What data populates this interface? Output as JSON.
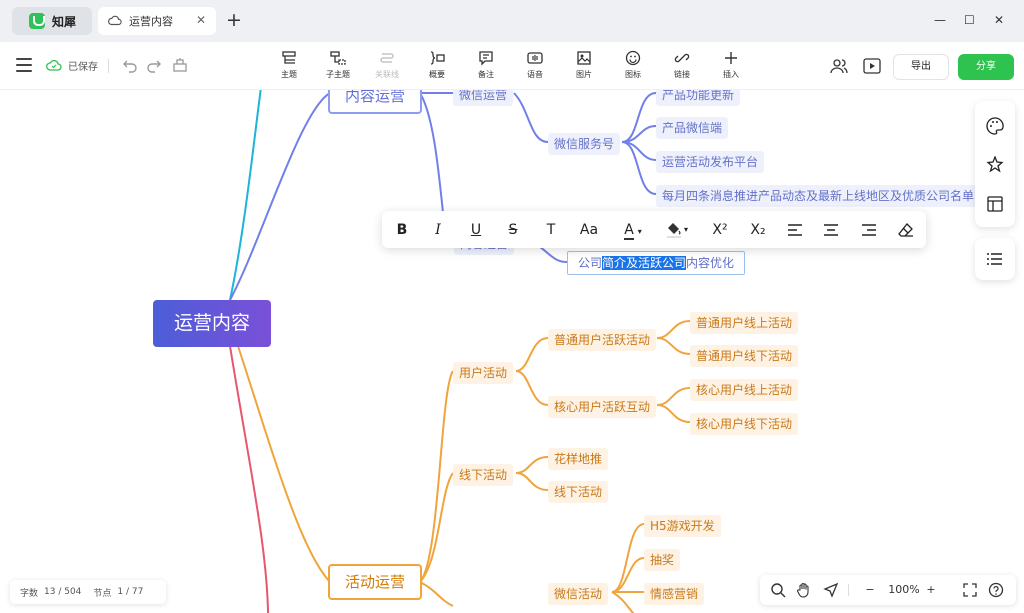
{
  "app": {
    "name": "知犀",
    "doc_tab": "运营内容",
    "new_tab_symbol": "+"
  },
  "window": {
    "minimize": "—",
    "maximize": "☐",
    "close": "✕"
  },
  "toolbar": {
    "saved_label": "已保存",
    "tools": [
      "主题",
      "子主题",
      "关联线",
      "概要",
      "备注",
      "语音",
      "图片",
      "图标",
      "链接",
      "插入"
    ],
    "export_label": "导出",
    "share_label": "分享"
  },
  "mindmap": {
    "root": "运营内容",
    "branch_content": "内容运营",
    "wechat_ops": "微信运营",
    "service_account": "微信服务号",
    "service_items": [
      "产品功能更新",
      "产品微信端",
      "运营活动发布平台",
      "每月四条消息推进产品动态及最新上线地区及优质公司名单"
    ],
    "hidden_sub": "内容运营",
    "editing_text": {
      "before": "公司",
      "selected": "简介及活跃公司",
      "after": "内容优化"
    },
    "branch_activity": "活动运营",
    "user_activity": "用户活动",
    "normal_active": "普通用户活跃活动",
    "normal_items": [
      "普通用户线上活动",
      "普通用户线下活动"
    ],
    "core_active": "核心用户活跃互动",
    "core_items": [
      "核心用户线上活动",
      "核心用户线下活动"
    ],
    "offline_activity": "线下活动",
    "offline_items": [
      "花样地推",
      "线下活动"
    ],
    "wechat_activity": "微信活动",
    "wechat_items": [
      "H5游戏开发",
      "抽奖",
      "情感营销"
    ]
  },
  "format_bar": {
    "font_size_label": "Aa",
    "font_color_letter": "A",
    "superscript": "X²",
    "subscript": "X₂"
  },
  "status": {
    "word_label": "字数",
    "word_count": "13 / 504",
    "node_label": "节点",
    "node_count": "1 / 77"
  },
  "zoom": {
    "minus": "−",
    "value": "100%",
    "plus": "+"
  },
  "colors": {
    "accent_green": "#2ec24f",
    "blue_branch": "#7080e8",
    "orange_branch": "#f0a43c",
    "cyan_branch": "#1fb3d8",
    "red_branch": "#e8566e"
  }
}
